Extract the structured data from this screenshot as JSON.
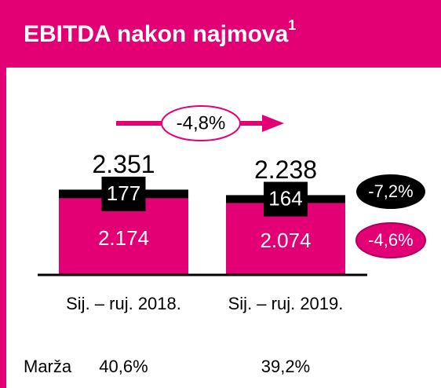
{
  "chart_data": {
    "type": "bar",
    "title": "EBITDA nakon najmova",
    "title_sup": "1",
    "categories": [
      "Sij. – ruj. 2018.",
      "Sij. – ruj. 2019."
    ],
    "series": [
      {
        "color": "#e20074",
        "values": [
          2174,
          2074
        ],
        "value_labels": [
          "2.174",
          "2.074"
        ],
        "change_label": "-4,6%"
      },
      {
        "color": "#000000",
        "values": [
          177,
          164
        ],
        "change_label": "-7,2%"
      }
    ],
    "totals": [
      2351,
      2238
    ],
    "total_labels": [
      "2.351",
      "2.238"
    ],
    "change_label": "-4,8%",
    "margin": {
      "label": "Marža",
      "values": [
        "40,6%",
        "39,2%"
      ]
    }
  }
}
